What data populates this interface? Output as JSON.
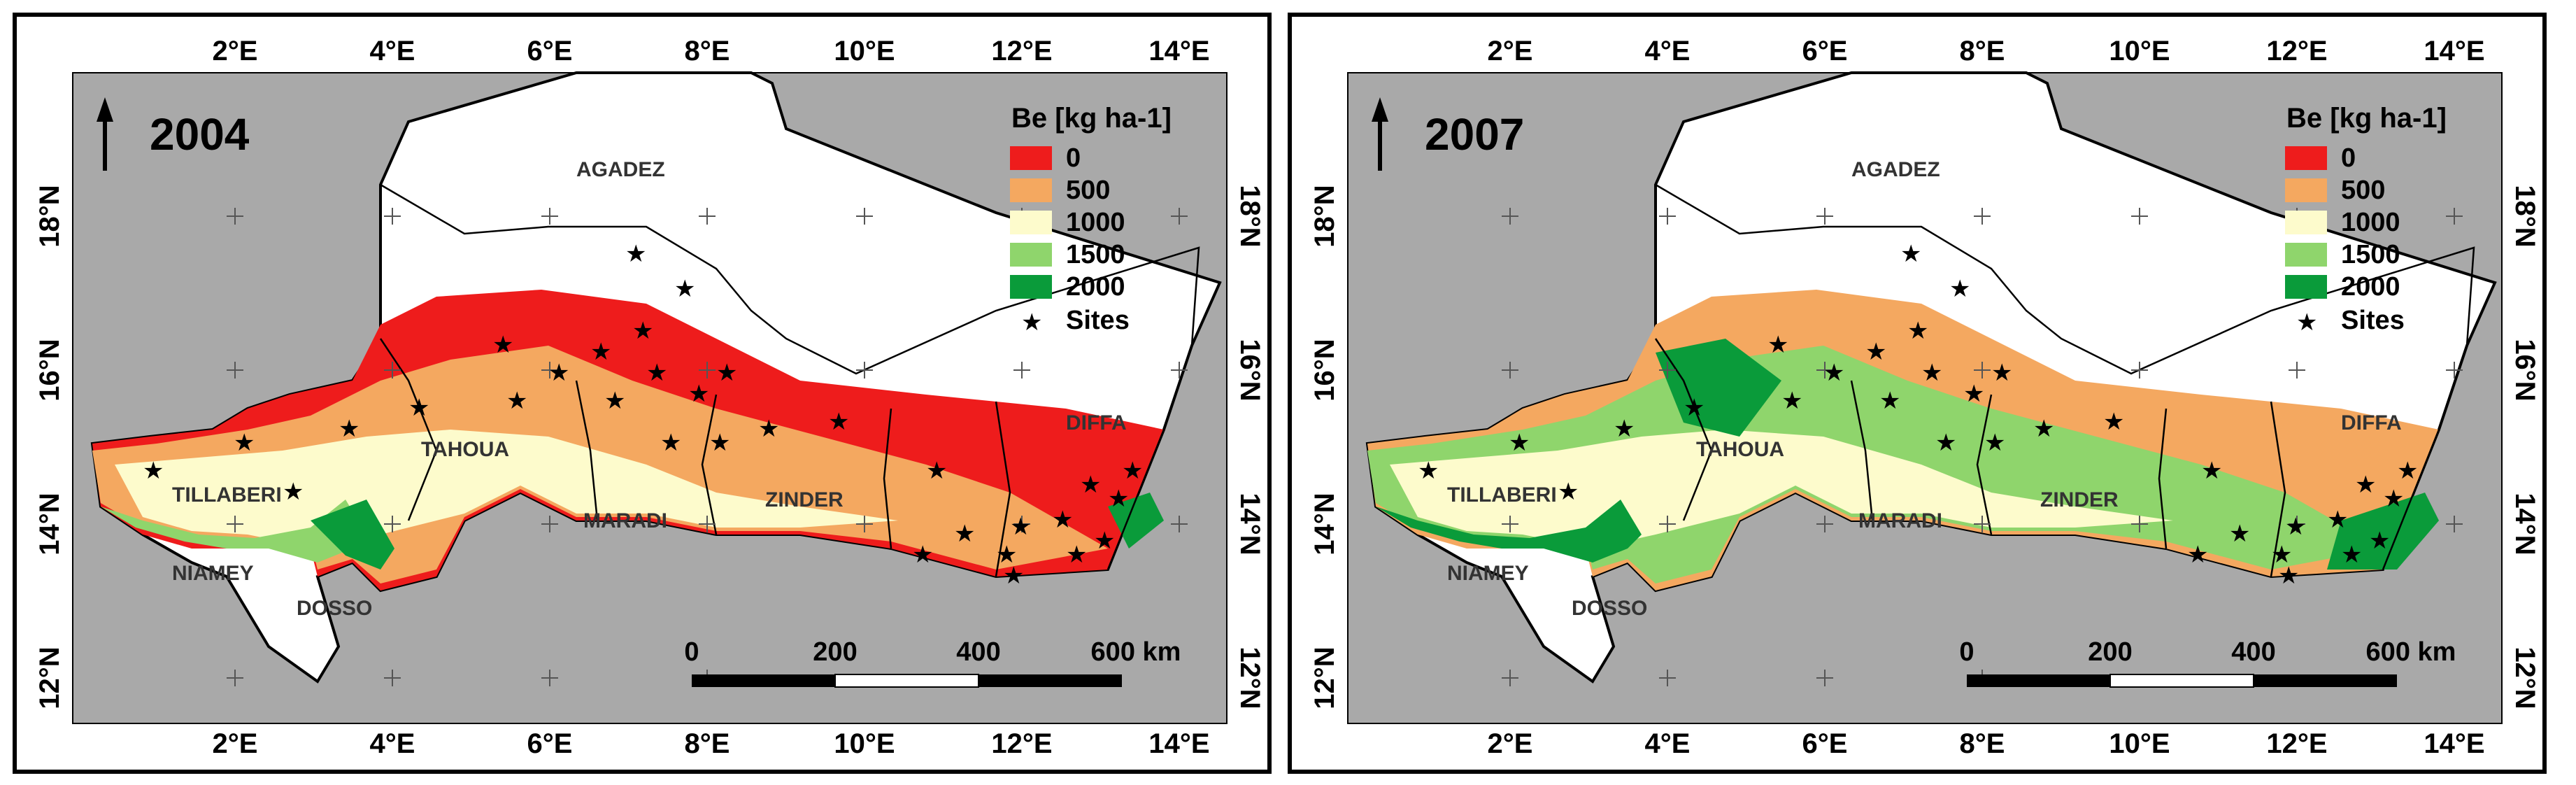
{
  "legend": {
    "title": "Be [kg ha-1]",
    "classes": [
      {
        "label": "0",
        "color": "#ee1c1c"
      },
      {
        "label": "500",
        "color": "#f4a860"
      },
      {
        "label": "1000",
        "color": "#fdfbcc"
      },
      {
        "label": "1500",
        "color": "#8fd56c"
      },
      {
        "label": "2000",
        "color": "#0a9b3a"
      }
    ],
    "sites_label": "Sites"
  },
  "axes": {
    "lon_ticks": [
      "2°E",
      "4°E",
      "6°E",
      "8°E",
      "10°E",
      "12°E",
      "14°E"
    ],
    "lat_ticks": [
      "18°N",
      "16°N",
      "14°N",
      "12°N"
    ]
  },
  "regions": [
    "AGADEZ",
    "TAHOUA",
    "TILLABERI",
    "MARADI",
    "ZINDER",
    "DIFFA",
    "NIAMEY",
    "DOSSO"
  ],
  "scalebar": {
    "labels": [
      "0",
      "200",
      "400",
      "600 km"
    ]
  },
  "panels": [
    {
      "year": "2004",
      "palette": [
        "#ee1c1c",
        "#ee1c1c",
        "#f4a860",
        "#ee1c1c",
        "#fdfbcc"
      ]
    },
    {
      "year": "2007",
      "palette": [
        "#f4a860",
        "#8fd56c",
        "#fdfbcc",
        "#0a9b3a",
        "#f4a860"
      ]
    }
  ],
  "colors": {
    "outside": "#a9a9a9",
    "frame": "#000000"
  }
}
